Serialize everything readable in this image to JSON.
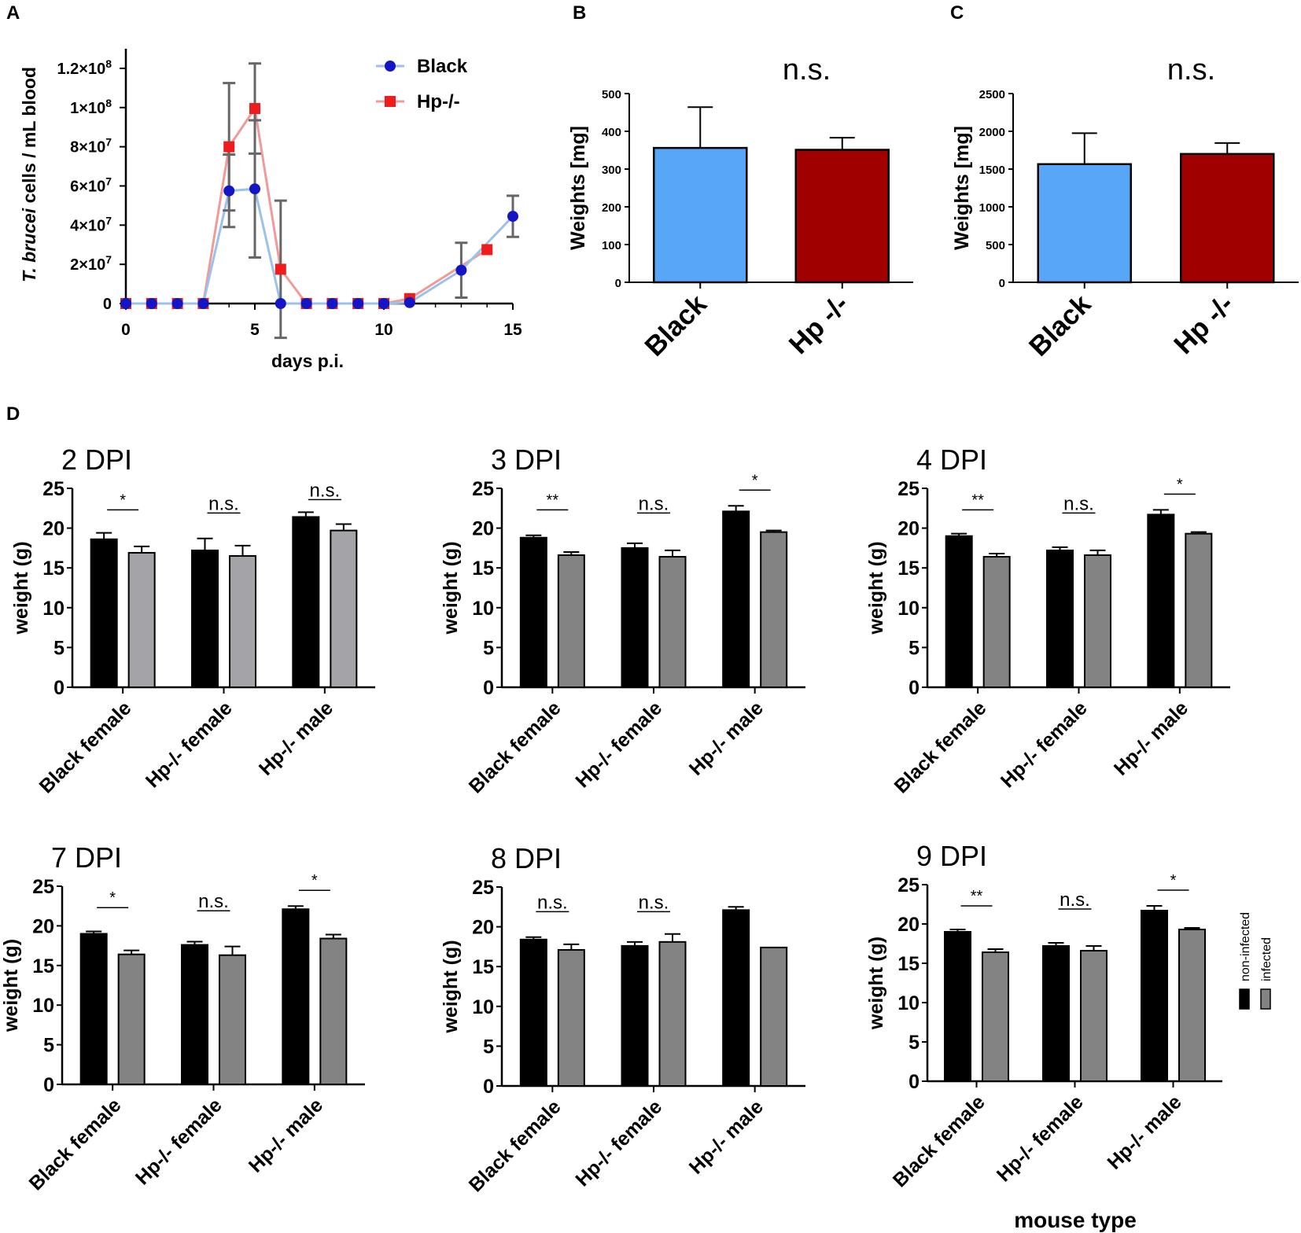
{
  "panel_labels": {
    "a": "A",
    "b": "B",
    "c": "C",
    "d": "D"
  },
  "colors": {
    "black_series": "#1515c8",
    "black_line": "#9cc2ec",
    "hp_series": "#ee1c1c",
    "hp_line": "#f19a9a",
    "error": "#666666",
    "bar_black": "#58a6f8",
    "bar_hp": "#a00000",
    "non_infected": "#000000",
    "infected_light": "#a3a3a8",
    "infected": "#838383"
  },
  "chart_data": [
    {
      "id": "A",
      "type": "line",
      "title": "",
      "xlabel": "days p.i.",
      "ylabel_italic": "T. brucei",
      "ylabel_rest": " cells / mL blood",
      "xlim": [
        0,
        15
      ],
      "ylim": [
        0,
        130000000
      ],
      "x_ticks": [
        "0",
        "5",
        "10",
        "15"
      ],
      "x_tick_values": [
        0,
        5,
        10,
        15
      ],
      "y_ticks": [
        {
          "value": 0,
          "mant": "0",
          "exp": ""
        },
        {
          "value": 20000000,
          "mant": "2×10",
          "exp": "7"
        },
        {
          "value": 40000000,
          "mant": "4×10",
          "exp": "7"
        },
        {
          "value": 60000000,
          "mant": "6×10",
          "exp": "7"
        },
        {
          "value": 80000000,
          "mant": "8×10",
          "exp": "7"
        },
        {
          "value": 100000000,
          "mant": "1×10",
          "exp": "8"
        },
        {
          "value": 120000000,
          "mant": "1.2×10",
          "exp": "8"
        }
      ],
      "legend_position": "top-right",
      "series": [
        {
          "name": "Black",
          "marker": "circle",
          "x": [
            0,
            1,
            2,
            3,
            4,
            5,
            6,
            7,
            8,
            9,
            10,
            11,
            13,
            15
          ],
          "y": [
            0,
            0,
            0,
            0,
            57500000,
            58500000,
            0,
            0,
            0,
            0,
            0,
            500000,
            17000000,
            44500000
          ],
          "err": [
            0,
            0,
            0,
            0,
            18500000,
            35000000,
            0,
            0,
            0,
            0,
            0,
            0,
            14000000,
            10500000
          ]
        },
        {
          "name": "Hp-/-",
          "marker": "square",
          "x": [
            0,
            1,
            2,
            3,
            4,
            5,
            6,
            7,
            8,
            9,
            10,
            11,
            14
          ],
          "y": [
            0,
            0,
            0,
            0,
            80000000,
            99500000,
            17500000,
            0,
            0,
            0,
            0,
            2500000,
            27500000
          ],
          "err": [
            0,
            0,
            0,
            0,
            32500000,
            23000000,
            35000000,
            0,
            0,
            0,
            0,
            0,
            0
          ]
        }
      ]
    },
    {
      "id": "B",
      "type": "bar",
      "title": "",
      "annotation": "n.s.",
      "xlabel": "",
      "ylabel": "Weights [mg]",
      "ylim": [
        0,
        500
      ],
      "y_ticks": [
        "0",
        "100",
        "200",
        "300",
        "400",
        "500"
      ],
      "categories": [
        "Black",
        "Hp -/-"
      ],
      "values": [
        356,
        351
      ],
      "errors": [
        108,
        32
      ]
    },
    {
      "id": "C",
      "type": "bar",
      "title": "",
      "annotation": "n.s.",
      "xlabel": "",
      "ylabel": "Weights [mg]",
      "ylim": [
        0,
        2500
      ],
      "y_ticks": [
        "0",
        "500",
        "1000",
        "1500",
        "2000",
        "2500"
      ],
      "categories": [
        "Black",
        "Hp -/-"
      ],
      "values": [
        1565,
        1700
      ],
      "errors": [
        410,
        145
      ]
    },
    {
      "id": "D-2",
      "type": "bar",
      "title": "2 DPI",
      "xlabel": "",
      "ylabel": "weight (g)",
      "ylim": [
        0,
        25
      ],
      "y_ticks": [
        "0",
        "5",
        "10",
        "15",
        "20",
        "25"
      ],
      "categories": [
        "Black female",
        "Hp-/- female",
        "Hp-/- male"
      ],
      "series": [
        {
          "name": "non-infected",
          "values": [
            18.6,
            17.2,
            21.4
          ],
          "errors": [
            0.8,
            1.5,
            0.6
          ]
        },
        {
          "name": "infected",
          "values": [
            16.9,
            16.5,
            19.7
          ],
          "errors": [
            0.8,
            1.3,
            0.8
          ]
        }
      ],
      "significance": [
        "*",
        "n.s.",
        "n.s."
      ]
    },
    {
      "id": "D-3",
      "type": "bar",
      "title": "3 DPI",
      "xlabel": "",
      "ylabel": "weight (g)",
      "ylim": [
        0,
        25
      ],
      "y_ticks": [
        "0",
        "5",
        "10",
        "15",
        "20",
        "25"
      ],
      "categories": [
        "Black female",
        "Hp-/- female",
        "Hp-/- male"
      ],
      "series": [
        {
          "name": "non-infected",
          "values": [
            18.8,
            17.5,
            22.1
          ],
          "errors": [
            0.3,
            0.6,
            0.7
          ]
        },
        {
          "name": "infected",
          "values": [
            16.6,
            16.4,
            19.5
          ],
          "errors": [
            0.4,
            0.8,
            0.2
          ]
        }
      ],
      "significance": [
        "**",
        "n.s.",
        "*"
      ]
    },
    {
      "id": "D-4",
      "type": "bar",
      "title": "4 DPI",
      "xlabel": "",
      "ylabel": "weight (g)",
      "ylim": [
        0,
        25
      ],
      "y_ticks": [
        "0",
        "5",
        "10",
        "15",
        "20",
        "25"
      ],
      "categories": [
        "Black female",
        "Hp-/- female",
        "Hp-/- male"
      ],
      "series": [
        {
          "name": "non-infected",
          "values": [
            19.0,
            17.2,
            21.7
          ],
          "errors": [
            0.3,
            0.4,
            0.6
          ]
        },
        {
          "name": "infected",
          "values": [
            16.4,
            16.6,
            19.3
          ],
          "errors": [
            0.4,
            0.6,
            0.2
          ]
        }
      ],
      "significance": [
        "**",
        "n.s.",
        "*"
      ]
    },
    {
      "id": "D-7",
      "type": "bar",
      "title": "7 DPI",
      "xlabel": "",
      "ylabel": "weight (g)",
      "ylim": [
        0,
        25
      ],
      "y_ticks": [
        "0",
        "5",
        "10",
        "15",
        "20",
        "25"
      ],
      "categories": [
        "Black female",
        "Hp-/- female",
        "Hp-/- male"
      ],
      "series": [
        {
          "name": "non-infected",
          "values": [
            19.0,
            17.6,
            22.1
          ],
          "errors": [
            0.3,
            0.4,
            0.4
          ]
        },
        {
          "name": "infected",
          "values": [
            16.4,
            16.3,
            18.4
          ],
          "errors": [
            0.5,
            1.1,
            0.5
          ]
        }
      ],
      "significance": [
        "*",
        "n.s.",
        "*"
      ]
    },
    {
      "id": "D-8",
      "type": "bar",
      "title": "8 DPI",
      "xlabel": "",
      "ylabel": "weight (g)",
      "ylim": [
        0,
        25
      ],
      "y_ticks": [
        "0",
        "5",
        "10",
        "15",
        "20",
        "25"
      ],
      "categories": [
        "Black female",
        "Hp-/- female",
        "Hp-/- male"
      ],
      "series": [
        {
          "name": "non-infected",
          "values": [
            18.4,
            17.6,
            22.1
          ],
          "errors": [
            0.3,
            0.5,
            0.4
          ]
        },
        {
          "name": "infected",
          "values": [
            17.1,
            18.1,
            17.4
          ],
          "errors": [
            0.7,
            1.0,
            0
          ]
        }
      ],
      "significance": [
        "n.s.",
        "n.s.",
        ""
      ]
    },
    {
      "id": "D-9",
      "type": "bar",
      "title": "9 DPI",
      "xlabel": "mouse type",
      "ylabel": "weight (g)",
      "ylim": [
        0,
        25
      ],
      "y_ticks": [
        "0",
        "5",
        "10",
        "15",
        "20",
        "25"
      ],
      "categories": [
        "Black female",
        "Hp-/- female",
        "Hp-/- male"
      ],
      "series": [
        {
          "name": "non-infected",
          "values": [
            19.0,
            17.2,
            21.7
          ],
          "errors": [
            0.3,
            0.4,
            0.6
          ]
        },
        {
          "name": "infected",
          "values": [
            16.4,
            16.6,
            19.3
          ],
          "errors": [
            0.4,
            0.6,
            0.2
          ]
        }
      ],
      "significance": [
        "**",
        "n.s.",
        "*"
      ],
      "legend": [
        "non-infected",
        "infected"
      ],
      "legend_position": "right"
    }
  ]
}
